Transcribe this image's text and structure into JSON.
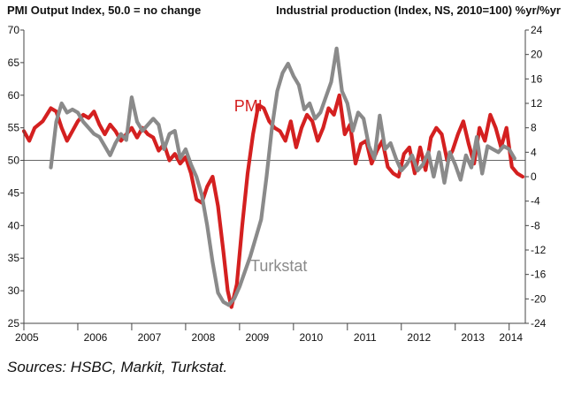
{
  "chart_data": {
    "type": "line",
    "title_left": "PMI Output Index, 50.0 = no change",
    "title_right": "Industrial production (Index, NS, 2010=100) %yr/%yr",
    "source": "Sources: HSBC, Markit, Turkstat.",
    "left_axis": {
      "ylim": [
        25,
        70
      ],
      "ticks": [
        25,
        30,
        35,
        40,
        45,
        50,
        55,
        60,
        65,
        70
      ],
      "reference_line": 50
    },
    "right_axis": {
      "ylim": [
        -24,
        24
      ],
      "ticks": [
        -24,
        -20,
        -16,
        -12,
        -8,
        -4,
        0,
        4,
        8,
        12,
        16,
        20,
        24
      ]
    },
    "x_axis": {
      "range": [
        2005,
        2014.3
      ],
      "tick_labels": [
        "2005",
        "2006",
        "2007",
        "2008",
        "2009",
        "2010",
        "2011",
        "2012",
        "2013",
        "2014"
      ]
    },
    "colors": {
      "pmi": "#d42020",
      "turkstat": "#8a8a8a",
      "axis": "#444444",
      "reference": "#666666"
    },
    "series": [
      {
        "name": "PMI",
        "axis": "left",
        "label_pos": [
          2008.9,
          57.5
        ],
        "points": [
          [
            2005.0,
            54.5
          ],
          [
            2005.1,
            53
          ],
          [
            2005.2,
            55
          ],
          [
            2005.35,
            56
          ],
          [
            2005.5,
            58
          ],
          [
            2005.6,
            57.5
          ],
          [
            2005.7,
            55
          ],
          [
            2005.8,
            53
          ],
          [
            2005.9,
            54.5
          ],
          [
            2006.0,
            56
          ],
          [
            2006.1,
            57
          ],
          [
            2006.2,
            56.5
          ],
          [
            2006.3,
            57.5
          ],
          [
            2006.4,
            55.5
          ],
          [
            2006.5,
            54
          ],
          [
            2006.6,
            55.5
          ],
          [
            2006.7,
            54.5
          ],
          [
            2006.8,
            53
          ],
          [
            2006.9,
            54
          ],
          [
            2007.0,
            55
          ],
          [
            2007.1,
            53.5
          ],
          [
            2007.2,
            55
          ],
          [
            2007.3,
            54
          ],
          [
            2007.4,
            53.5
          ],
          [
            2007.5,
            51.5
          ],
          [
            2007.6,
            52.5
          ],
          [
            2007.7,
            50
          ],
          [
            2007.8,
            51
          ],
          [
            2007.9,
            49.5
          ],
          [
            2008.0,
            50.5
          ],
          [
            2008.1,
            48
          ],
          [
            2008.2,
            44
          ],
          [
            2008.3,
            43.5
          ],
          [
            2008.4,
            46
          ],
          [
            2008.5,
            47.5
          ],
          [
            2008.6,
            43
          ],
          [
            2008.7,
            36
          ],
          [
            2008.78,
            30
          ],
          [
            2008.85,
            27.5
          ],
          [
            2008.95,
            31
          ],
          [
            2009.05,
            40
          ],
          [
            2009.15,
            48
          ],
          [
            2009.25,
            54
          ],
          [
            2009.35,
            58.5
          ],
          [
            2009.45,
            58
          ],
          [
            2009.55,
            56
          ],
          [
            2009.65,
            55
          ],
          [
            2009.75,
            54.5
          ],
          [
            2009.85,
            53
          ],
          [
            2009.95,
            56
          ],
          [
            2010.05,
            52
          ],
          [
            2010.15,
            55
          ],
          [
            2010.25,
            57
          ],
          [
            2010.35,
            56
          ],
          [
            2010.45,
            53
          ],
          [
            2010.55,
            55
          ],
          [
            2010.65,
            58
          ],
          [
            2010.75,
            57
          ],
          [
            2010.85,
            60
          ],
          [
            2010.95,
            54
          ],
          [
            2011.05,
            55.5
          ],
          [
            2011.15,
            49.5
          ],
          [
            2011.25,
            52.5
          ],
          [
            2011.35,
            53
          ],
          [
            2011.45,
            49.5
          ],
          [
            2011.55,
            51.5
          ],
          [
            2011.65,
            53
          ],
          [
            2011.75,
            49
          ],
          [
            2011.85,
            48
          ],
          [
            2011.95,
            47.5
          ],
          [
            2012.05,
            51
          ],
          [
            2012.15,
            52
          ],
          [
            2012.25,
            48
          ],
          [
            2012.35,
            52
          ],
          [
            2012.45,
            48.5
          ],
          [
            2012.55,
            53.5
          ],
          [
            2012.65,
            55
          ],
          [
            2012.75,
            54
          ],
          [
            2012.85,
            50
          ],
          [
            2012.95,
            51.5
          ],
          [
            2013.05,
            54
          ],
          [
            2013.15,
            56
          ],
          [
            2013.25,
            52.5
          ],
          [
            2013.35,
            49.5
          ],
          [
            2013.45,
            55
          ],
          [
            2013.55,
            53
          ],
          [
            2013.65,
            57
          ],
          [
            2013.75,
            55
          ],
          [
            2013.85,
            52
          ],
          [
            2013.95,
            55
          ],
          [
            2014.05,
            49
          ],
          [
            2014.15,
            48
          ],
          [
            2014.25,
            47.5
          ]
        ]
      },
      {
        "name": "Turkstat",
        "axis": "right",
        "label_pos": [
          2009.2,
          -15.5
        ],
        "points": [
          [
            2005.5,
            1.5
          ],
          [
            2005.6,
            9
          ],
          [
            2005.7,
            12
          ],
          [
            2005.8,
            10.5
          ],
          [
            2005.9,
            11
          ],
          [
            2006.0,
            10.5
          ],
          [
            2006.1,
            9
          ],
          [
            2006.2,
            8
          ],
          [
            2006.3,
            7
          ],
          [
            2006.4,
            6.5
          ],
          [
            2006.5,
            5
          ],
          [
            2006.6,
            3.5
          ],
          [
            2006.7,
            5.5
          ],
          [
            2006.8,
            7
          ],
          [
            2006.9,
            6
          ],
          [
            2007.0,
            13
          ],
          [
            2007.1,
            9
          ],
          [
            2007.2,
            7.5
          ],
          [
            2007.3,
            8.5
          ],
          [
            2007.4,
            9.5
          ],
          [
            2007.5,
            8.5
          ],
          [
            2007.6,
            4.5
          ],
          [
            2007.7,
            7
          ],
          [
            2007.8,
            7.5
          ],
          [
            2007.9,
            3
          ],
          [
            2008.0,
            4.5
          ],
          [
            2008.1,
            2
          ],
          [
            2008.2,
            0
          ],
          [
            2008.3,
            -3
          ],
          [
            2008.4,
            -8
          ],
          [
            2008.5,
            -14
          ],
          [
            2008.6,
            -19
          ],
          [
            2008.7,
            -20.5
          ],
          [
            2008.8,
            -21
          ],
          [
            2008.9,
            -20
          ],
          [
            2009.0,
            -18
          ],
          [
            2009.1,
            -15.5
          ],
          [
            2009.2,
            -13
          ],
          [
            2009.3,
            -10
          ],
          [
            2009.4,
            -7
          ],
          [
            2009.5,
            0
          ],
          [
            2009.6,
            8
          ],
          [
            2009.7,
            14
          ],
          [
            2009.8,
            17
          ],
          [
            2009.9,
            18.5
          ],
          [
            2010.0,
            16.5
          ],
          [
            2010.1,
            15
          ],
          [
            2010.2,
            11
          ],
          [
            2010.3,
            12
          ],
          [
            2010.4,
            9.5
          ],
          [
            2010.5,
            10.5
          ],
          [
            2010.6,
            13
          ],
          [
            2010.7,
            15.5
          ],
          [
            2010.8,
            21
          ],
          [
            2010.9,
            14
          ],
          [
            2011.0,
            12
          ],
          [
            2011.1,
            7.5
          ],
          [
            2011.2,
            10.5
          ],
          [
            2011.3,
            9.5
          ],
          [
            2011.4,
            5
          ],
          [
            2011.5,
            3
          ],
          [
            2011.6,
            10
          ],
          [
            2011.7,
            4.5
          ],
          [
            2011.8,
            5.5
          ],
          [
            2011.9,
            3
          ],
          [
            2012.0,
            1
          ],
          [
            2012.1,
            2
          ],
          [
            2012.2,
            3.5
          ],
          [
            2012.3,
            1
          ],
          [
            2012.4,
            2
          ],
          [
            2012.5,
            4
          ],
          [
            2012.6,
            0
          ],
          [
            2012.7,
            4
          ],
          [
            2012.8,
            -1
          ],
          [
            2012.9,
            4
          ],
          [
            2013.0,
            2
          ],
          [
            2013.1,
            -0.5
          ],
          [
            2013.2,
            3.5
          ],
          [
            2013.3,
            1.5
          ],
          [
            2013.4,
            6.5
          ],
          [
            2013.5,
            0.5
          ],
          [
            2013.6,
            5
          ],
          [
            2013.7,
            4.5
          ],
          [
            2013.8,
            4
          ],
          [
            2013.9,
            5
          ],
          [
            2014.0,
            4.5
          ],
          [
            2014.1,
            3
          ]
        ]
      }
    ]
  }
}
